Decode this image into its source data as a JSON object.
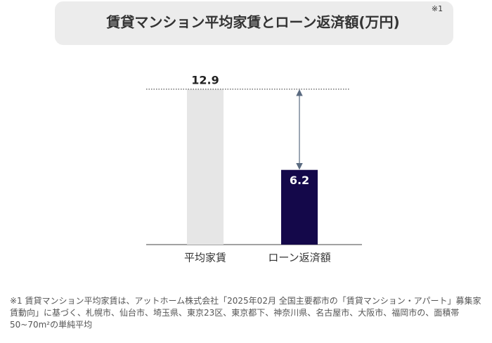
{
  "chart_data": {
    "type": "bar",
    "title": "賃貸マンション平均家賃とローン返済額(万円)",
    "title_note": "※1",
    "categories": [
      "平均家賃",
      "ローン返済額"
    ],
    "values": [
      12.9,
      6.2
    ],
    "colors": [
      "#e6e6e6",
      "#14084a"
    ],
    "label_colors": [
      "#222222",
      "#ffffff"
    ],
    "ylim": [
      0,
      14
    ],
    "footnote": "※1 賃貸マンション平均家賃は、アットホーム株式会社「2025年02月 全国主要都市の「賃貸マンション・アパート」募集家賃動向」に基づく、札幌市、仙台市、埼玉県、東京23区、東京都下、神奈川県、名古屋市、大阪市、福岡市の、面積帯50~70m²の単純平均"
  }
}
